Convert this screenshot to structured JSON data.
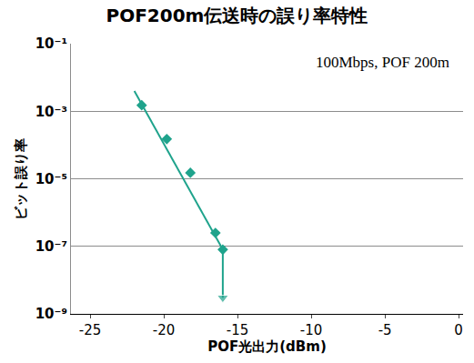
{
  "chart_data": {
    "type": "scatter",
    "title": "POF200m伝送時の誤り率特性",
    "x_label": "POF光出力(dBm)",
    "y_label": "ビット誤り率",
    "annotations": [
      "100Mbps, POF 200m"
    ],
    "log": "y",
    "grid": true,
    "xlim": [
      -26.3,
      0.3
    ],
    "xticks": [
      -25,
      -20,
      -15,
      -10,
      -5,
      0
    ],
    "ylim": [
      1e-09,
      0.1
    ],
    "yticks": [
      {
        "value": 0.1,
        "label": "10⁻¹"
      },
      {
        "value": 0.001,
        "label": "10⁻³"
      },
      {
        "value": 1e-05,
        "label": "10⁻⁵"
      },
      {
        "value": 1e-07,
        "label": "10⁻⁷"
      },
      {
        "value": 1e-09,
        "label": "10⁻⁹"
      }
    ],
    "series": [
      {
        "type": "scatter",
        "marker": "diamond",
        "color": "#1fa38c",
        "x": [
          -21.5,
          -19.8,
          -18.2,
          -16.5,
          -16.0
        ],
        "values": [
          0.0015,
          0.00015,
          1.5e-05,
          2.5e-07,
          8e-08
        ]
      },
      {
        "type": "line",
        "line_style": "solid",
        "color": "#1fa38c",
        "x": [
          -22.0,
          -16.0
        ],
        "values": [
          0.004,
          8e-08
        ]
      },
      {
        "type": "line",
        "line_style": "solid",
        "marker": "arrow",
        "color": "#1fa38c",
        "x": [
          -16.0,
          -16.0
        ],
        "values": [
          8e-08,
          3e-09
        ]
      }
    ]
  }
}
